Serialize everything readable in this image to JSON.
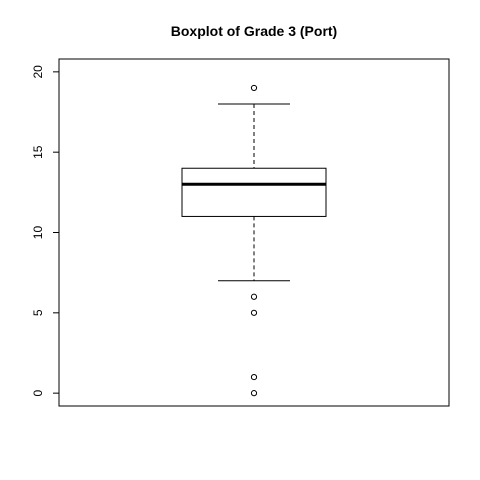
{
  "chart_data": {
    "type": "boxplot",
    "title": "Boxplot of Grade 3 (Port)",
    "xlabel": "",
    "ylabel": "",
    "ylim": [
      -0.8,
      20.8
    ],
    "yticks": [
      0,
      5,
      10,
      15,
      20
    ],
    "ytick_labels": [
      "0",
      "5",
      "10",
      "15",
      "20"
    ],
    "grid": false,
    "legend": "none",
    "box": {
      "whisker_low": 7,
      "q1": 11,
      "median": 13,
      "q3": 14,
      "whisker_high": 18
    },
    "outliers": [
      19,
      6,
      5,
      1,
      0
    ]
  }
}
